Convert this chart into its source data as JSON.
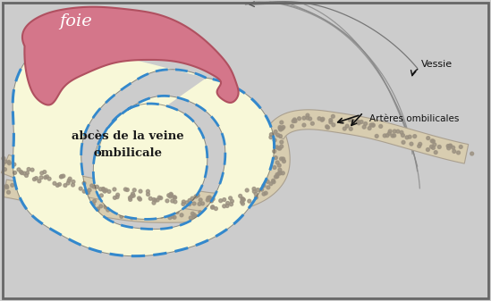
{
  "bg_color": "#cccccc",
  "inner_bg": "#ffffff",
  "liver_color": "#d4768a",
  "liver_edge": "#b05060",
  "abscess_fill": "#f8f8d8",
  "dashed_color": "#3388cc",
  "cord_color": "#d8cdb0",
  "cord_edge": "#aaa090",
  "cord_dot": "#9a9080",
  "line_color": "#555555",
  "arrow_color": "#111111",
  "text_foie": "foie",
  "text_abs1": "abcès de la veine",
  "text_abs2": "ombilicale",
  "text_vessie": "Vessie",
  "text_arteres": "Artères ombilicales",
  "figsize": [
    5.49,
    3.37
  ],
  "dpi": 100
}
